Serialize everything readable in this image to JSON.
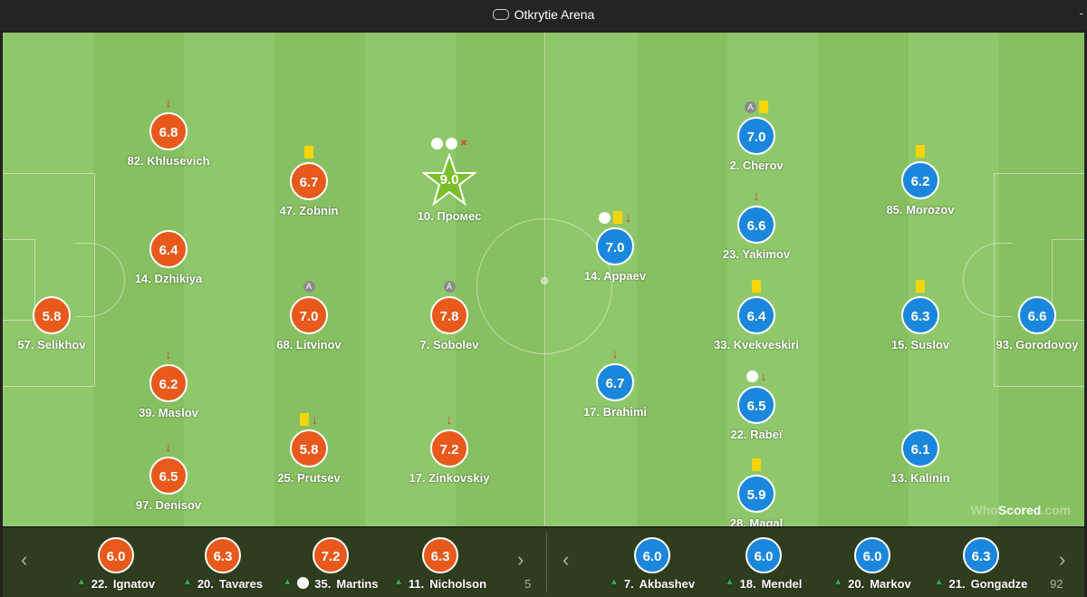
{
  "venue": {
    "name": "Otkrytie Arena",
    "right_glyph": "-"
  },
  "home_players": [
    {
      "name": "82. Khlusevich",
      "rating": "6.8",
      "icons": [
        "red-arrow"
      ]
    },
    {
      "name": "14. Dzhikiya",
      "rating": "6.4",
      "icons": []
    },
    {
      "name": "57. Selikhov",
      "rating": "5.8",
      "icons": []
    },
    {
      "name": "39. Maslov",
      "rating": "6.2",
      "icons": [
        "red-arrow"
      ]
    },
    {
      "name": "97. Denisov",
      "rating": "6.5",
      "icons": [
        "red-arrow"
      ]
    },
    {
      "name": "47. Zobnin",
      "rating": "6.7",
      "icons": [
        "yellow"
      ]
    },
    {
      "name": "68. Litvinov",
      "rating": "7.0",
      "icons": [
        "assist"
      ]
    },
    {
      "name": "25. Prutsev",
      "rating": "5.8",
      "icons": [
        "yellow",
        "red-arrow"
      ]
    },
    {
      "name": "7. Sobolev",
      "rating": "7.8",
      "icons": [
        "assist"
      ]
    },
    {
      "name": "17. Zinkovskiy",
      "rating": "7.2",
      "icons": [
        "red-arrow"
      ]
    },
    {
      "name": "10. Промес",
      "rating": "9.0",
      "icons": [
        "ball",
        "ball",
        "sub-x"
      ],
      "man_of_match": true
    }
  ],
  "away_players": [
    {
      "name": "14. Appaev",
      "rating": "7.0",
      "icons": [
        "ball",
        "yellow",
        "red-arrow"
      ]
    },
    {
      "name": "17. Brahimi",
      "rating": "6.7",
      "icons": [
        "red-arrow"
      ]
    },
    {
      "name": "2. Cherov",
      "rating": "7.0",
      "icons": [
        "assist",
        "yellow"
      ]
    },
    {
      "name": "23. Yakimov",
      "rating": "6.6",
      "icons": [
        "red-arrow"
      ]
    },
    {
      "name": "33. Kvekveskiri",
      "rating": "6.4",
      "icons": [
        "yellow"
      ]
    },
    {
      "name": "22. Rabeï",
      "rating": "6.5",
      "icons": [
        "ball",
        "red-arrow"
      ]
    },
    {
      "name": "28. Magal",
      "rating": "5.9",
      "icons": [
        "yellow"
      ]
    },
    {
      "name": "85. Morozov",
      "rating": "6.2",
      "icons": [
        "yellow"
      ]
    },
    {
      "name": "15. Suslov",
      "rating": "6.3",
      "icons": [
        "yellow"
      ]
    },
    {
      "name": "13. Kalinin",
      "rating": "6.1",
      "icons": []
    },
    {
      "name": "93. Gorodovoy",
      "rating": "6.6",
      "icons": []
    }
  ],
  "bench_home": [
    {
      "name": "Ignatov",
      "num": "22.",
      "rating": "6.0"
    },
    {
      "name": "Tavares",
      "num": "20.",
      "rating": "6.3"
    },
    {
      "name": "Martins",
      "num": "35.",
      "rating": "7.2",
      "ball": true
    },
    {
      "name": "Nicholson",
      "num": "11.",
      "rating": "6.3"
    }
  ],
  "bench_away": [
    {
      "name": "Akbashev",
      "num": "7.",
      "rating": "6.0"
    },
    {
      "name": "Mendel",
      "num": "18.",
      "rating": "6.0"
    },
    {
      "name": "Markov",
      "num": "20.",
      "rating": "6.0"
    },
    {
      "name": "Gongadze",
      "num": "21.",
      "rating": "6.3"
    }
  ],
  "bench_faint": {
    "left": "5",
    "right": "92"
  },
  "brand": {
    "part1": "Who",
    "part2": "Scored",
    "part3": ".com"
  }
}
